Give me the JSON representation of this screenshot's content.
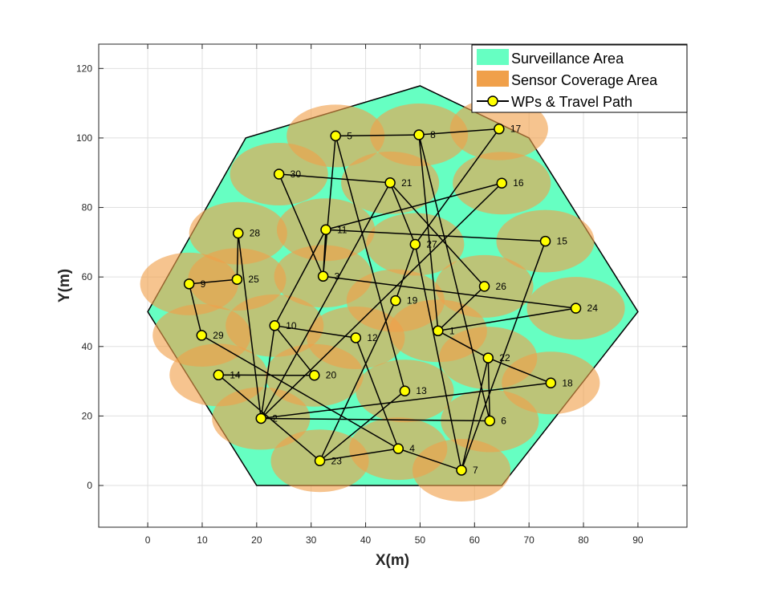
{
  "chart_data": {
    "type": "scatter",
    "xlabel": "X(m)",
    "ylabel": "Y(m)",
    "xlim": [
      -9,
      99
    ],
    "ylim": [
      -12,
      127
    ],
    "xticks": [
      0,
      10,
      20,
      30,
      40,
      50,
      60,
      70,
      80,
      90
    ],
    "yticks": [
      0,
      20,
      40,
      60,
      80,
      100,
      120
    ],
    "grid": true,
    "legend_position": "top-right",
    "colors": {
      "surveillance": "#66ffc2",
      "coverage": "#f0a04a",
      "waypoint_fill": "#ffff00",
      "line": "#000000"
    },
    "surveillance_area": [
      [
        0,
        50
      ],
      [
        18,
        100
      ],
      [
        50,
        115
      ],
      [
        70,
        100
      ],
      [
        90,
        50
      ],
      [
        65,
        0
      ],
      [
        20,
        0
      ]
    ],
    "sensor_radius": 9,
    "legend": [
      {
        "label": "Surveillance Area",
        "symbol": "surveillance"
      },
      {
        "label": "Sensor Coverage Area",
        "symbol": "coverage"
      },
      {
        "label": "WPs & Travel Path",
        "symbol": "waypoint"
      }
    ],
    "waypoints": [
      {
        "id": "1",
        "x": 53.3,
        "y": 44.5
      },
      {
        "id": "2",
        "x": 20.8,
        "y": 19.3
      },
      {
        "id": "3",
        "x": 32.2,
        "y": 60.2
      },
      {
        "id": "4",
        "x": 46.0,
        "y": 10.6
      },
      {
        "id": "5",
        "x": 34.5,
        "y": 100.6
      },
      {
        "id": "6",
        "x": 62.8,
        "y": 18.6
      },
      {
        "id": "7",
        "x": 57.6,
        "y": 4.4
      },
      {
        "id": "8",
        "x": 49.8,
        "y": 100.9
      },
      {
        "id": "9",
        "x": 7.6,
        "y": 58.0
      },
      {
        "id": "10",
        "x": 23.3,
        "y": 46.0
      },
      {
        "id": "11",
        "x": 32.7,
        "y": 73.6
      },
      {
        "id": "12",
        "x": 38.2,
        "y": 42.5
      },
      {
        "id": "13",
        "x": 47.2,
        "y": 27.2
      },
      {
        "id": "14",
        "x": 13.0,
        "y": 31.8
      },
      {
        "id": "15",
        "x": 73.0,
        "y": 70.3
      },
      {
        "id": "16",
        "x": 65.0,
        "y": 87.0
      },
      {
        "id": "17",
        "x": 64.5,
        "y": 102.6
      },
      {
        "id": "18",
        "x": 74.0,
        "y": 29.5
      },
      {
        "id": "19",
        "x": 45.5,
        "y": 53.2
      },
      {
        "id": "20",
        "x": 30.6,
        "y": 31.7
      },
      {
        "id": "21",
        "x": 44.5,
        "y": 87.1
      },
      {
        "id": "22",
        "x": 62.5,
        "y": 36.7
      },
      {
        "id": "23",
        "x": 31.6,
        "y": 7.1
      },
      {
        "id": "24",
        "x": 78.6,
        "y": 51.0
      },
      {
        "id": "25",
        "x": 16.4,
        "y": 59.3
      },
      {
        "id": "26",
        "x": 61.8,
        "y": 57.3
      },
      {
        "id": "27",
        "x": 49.1,
        "y": 69.4
      },
      {
        "id": "28",
        "x": 16.6,
        "y": 72.6
      },
      {
        "id": "29",
        "x": 9.9,
        "y": 43.2
      },
      {
        "id": "30",
        "x": 24.1,
        "y": 89.6
      }
    ],
    "path": [
      "5",
      "8",
      "17",
      "27",
      "19",
      "23",
      "13",
      "5",
      "3",
      "30",
      "21",
      "2",
      "28",
      "25",
      "9",
      "29",
      "4",
      "12",
      "10",
      "2",
      "16",
      "11",
      "3",
      "24",
      "1",
      "22",
      "18",
      "2",
      "6",
      "22",
      "7",
      "4",
      "23",
      "14",
      "20",
      "10",
      "11",
      "15",
      "7",
      "27",
      "21",
      "26",
      "1",
      "8",
      "6"
    ]
  }
}
